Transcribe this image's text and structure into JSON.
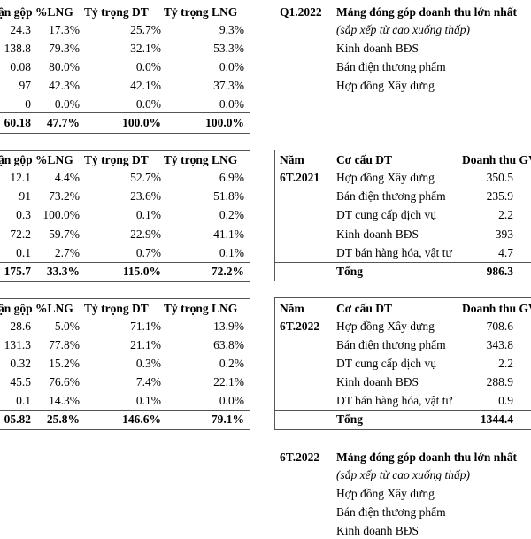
{
  "block1": {
    "headers": [
      "ận gộp",
      "%LNG",
      "Tỷ trọng DT",
      "Tỷ trọng LNG"
    ],
    "rows": [
      [
        "24.3",
        "17.3%",
        "25.7%",
        "9.3%"
      ],
      [
        "138.8",
        "79.3%",
        "32.1%",
        "53.3%"
      ],
      [
        "0.08",
        "80.0%",
        "0.0%",
        "0.0%"
      ],
      [
        "97",
        "42.3%",
        "42.1%",
        "37.3%"
      ],
      [
        "0",
        "0.0%",
        "0.0%",
        "0.0%"
      ]
    ],
    "total": [
      "60.18",
      "47.7%",
      "100.0%",
      "100.0%"
    ]
  },
  "block2": {
    "headers": [
      "ận gộp",
      "%LNG",
      "Tỷ trọng DT",
      "Tỷ trọng LNG"
    ],
    "rows": [
      [
        "12.1",
        "4.4%",
        "52.7%",
        "6.9%"
      ],
      [
        "91",
        "73.2%",
        "23.6%",
        "51.8%"
      ],
      [
        "0.3",
        "100.0%",
        "0.1%",
        "0.2%"
      ],
      [
        "72.2",
        "59.7%",
        "22.9%",
        "41.1%"
      ],
      [
        "0.1",
        "2.7%",
        "0.7%",
        "0.1%"
      ]
    ],
    "total": [
      "175.7",
      "33.3%",
      "115.0%",
      "72.2%"
    ]
  },
  "block3": {
    "headers": [
      "ận gộp",
      "%LNG",
      "Tỷ trọng DT",
      "Tỷ trọng LNG"
    ],
    "rows": [
      [
        "28.6",
        "5.0%",
        "71.1%",
        "13.9%"
      ],
      [
        "131.3",
        "77.8%",
        "21.1%",
        "63.8%"
      ],
      [
        "0.32",
        "15.2%",
        "0.3%",
        "0.2%"
      ],
      [
        "45.5",
        "76.6%",
        "7.4%",
        "22.1%"
      ],
      [
        "0.1",
        "14.3%",
        "0.1%",
        "0.0%"
      ]
    ],
    "total": [
      "05.82",
      "25.8%",
      "146.6%",
      "79.1%"
    ]
  },
  "q1": {
    "period": "Q1.2022",
    "title": "Mảng đóng góp doanh thu lớn nhất",
    "subtitle": "(sắp xếp từ cao xuống thấp)",
    "items": [
      "Kinh doanh BĐS",
      "Bán điện thương phẩm",
      "Hợp đồng Xây dựng"
    ]
  },
  "t2021": {
    "col_year": "Năm",
    "col_struct": "Cơ cấu DT",
    "col_rev": "Doanh thu GV",
    "period": "6T.2021",
    "rows": [
      [
        "Hợp đồng Xây dựng",
        "350.5"
      ],
      [
        "Bán điện thương phẩm",
        "235.9"
      ],
      [
        "DT cung cấp dịch vụ",
        "2.2"
      ],
      [
        "Kinh doanh BĐS",
        "393"
      ],
      [
        "DT bán hàng hóa, vật tư",
        "4.7"
      ]
    ],
    "total_label": "Tổng",
    "total_value": "986.3"
  },
  "t2022": {
    "col_year": "Năm",
    "col_struct": "Cơ cấu DT",
    "col_rev": "Doanh thu GV",
    "period": "6T.2022",
    "rows": [
      [
        "Hợp đồng Xây dựng",
        "708.6"
      ],
      [
        "Bán điện thương phẩm",
        "343.8"
      ],
      [
        "DT cung cấp dịch vụ",
        "2.2"
      ],
      [
        "Kinh doanh BĐS",
        "288.9"
      ],
      [
        "DT bán hàng hóa, vật tư",
        "0.9"
      ]
    ],
    "total_label": "Tổng",
    "total_value": "1344.4"
  },
  "h6": {
    "period": "6T.2022",
    "title": "Mảng đóng góp doanh thu lớn nhất",
    "subtitle": "(sắp xếp từ cao xuống thấp)",
    "items": [
      "Hợp đồng Xây dựng",
      "Bán điện thương phẩm",
      "Kinh doanh BĐS"
    ]
  }
}
